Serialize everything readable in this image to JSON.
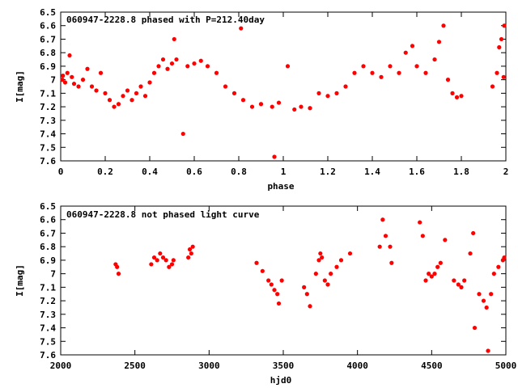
{
  "chart_data": [
    {
      "type": "scatter",
      "title": "060947-2228.8 phased with P=212.40day",
      "xlabel": "phase",
      "ylabel": "I[mag]",
      "xlim": [
        0,
        2
      ],
      "ylim": [
        7.6,
        6.5
      ],
      "y_inverted": true,
      "xticks": [
        "0",
        "0.2",
        "0.4",
        "0.6",
        "0.8",
        "1",
        "1.2",
        "1.4",
        "1.6",
        "1.8",
        "2"
      ],
      "yticks": [
        "6.5",
        "6.6",
        "6.7",
        "6.8",
        "6.9",
        "7",
        "7.1",
        "7.2",
        "7.3",
        "7.4",
        "7.5",
        "7.6"
      ],
      "marker_color": "#ff0000",
      "grid": false,
      "series": [
        {
          "points": [
            [
              0.0,
              7.0
            ],
            [
              0.01,
              6.97
            ],
            [
              0.02,
              7.02
            ],
            [
              0.03,
              6.95
            ],
            [
              0.04,
              6.82
            ],
            [
              0.05,
              6.98
            ],
            [
              0.06,
              7.03
            ],
            [
              0.08,
              7.05
            ],
            [
              0.1,
              7.0
            ],
            [
              0.12,
              6.92
            ],
            [
              0.14,
              7.05
            ],
            [
              0.16,
              7.08
            ],
            [
              0.18,
              6.95
            ],
            [
              0.2,
              7.1
            ],
            [
              0.22,
              7.15
            ],
            [
              0.24,
              7.2
            ],
            [
              0.26,
              7.18
            ],
            [
              0.28,
              7.12
            ],
            [
              0.3,
              7.08
            ],
            [
              0.32,
              7.15
            ],
            [
              0.34,
              7.1
            ],
            [
              0.36,
              7.05
            ],
            [
              0.38,
              7.12
            ],
            [
              0.4,
              7.02
            ],
            [
              0.42,
              6.95
            ],
            [
              0.44,
              6.9
            ],
            [
              0.46,
              6.85
            ],
            [
              0.48,
              6.92
            ],
            [
              0.5,
              6.88
            ],
            [
              0.51,
              6.7
            ],
            [
              0.52,
              6.85
            ],
            [
              0.55,
              7.4
            ],
            [
              0.57,
              6.9
            ],
            [
              0.6,
              6.88
            ],
            [
              0.63,
              6.86
            ],
            [
              0.66,
              6.9
            ],
            [
              0.7,
              6.95
            ],
            [
              0.74,
              7.05
            ],
            [
              0.78,
              7.1
            ],
            [
              0.82,
              7.15
            ],
            [
              0.81,
              6.62
            ],
            [
              0.86,
              7.2
            ],
            [
              0.9,
              7.18
            ],
            [
              0.95,
              7.2
            ],
            [
              0.96,
              7.57
            ],
            [
              0.98,
              7.17
            ],
            [
              1.02,
              6.9
            ],
            [
              1.05,
              7.22
            ],
            [
              1.08,
              7.2
            ],
            [
              1.12,
              7.21
            ],
            [
              1.16,
              7.1
            ],
            [
              1.2,
              7.12
            ],
            [
              1.24,
              7.1
            ],
            [
              1.28,
              7.05
            ],
            [
              1.32,
              6.95
            ],
            [
              1.36,
              6.9
            ],
            [
              1.4,
              6.95
            ],
            [
              1.44,
              6.98
            ],
            [
              1.48,
              6.9
            ],
            [
              1.52,
              6.95
            ],
            [
              1.55,
              6.8
            ],
            [
              1.58,
              6.75
            ],
            [
              1.6,
              6.9
            ],
            [
              1.64,
              6.95
            ],
            [
              1.68,
              6.85
            ],
            [
              1.7,
              6.72
            ],
            [
              1.72,
              6.6
            ],
            [
              1.74,
              7.0
            ],
            [
              1.76,
              7.1
            ],
            [
              1.78,
              7.13
            ],
            [
              1.8,
              7.12
            ],
            [
              1.94,
              7.05
            ],
            [
              1.96,
              6.95
            ],
            [
              1.97,
              6.76
            ],
            [
              1.98,
              6.7
            ],
            [
              1.99,
              6.98
            ],
            [
              2.0,
              6.6
            ]
          ]
        }
      ]
    },
    {
      "type": "scatter",
      "title": "060947-2228.8 not phased light curve",
      "xlabel": "hjd0",
      "ylabel": "I[mag]",
      "xlim": [
        2000,
        5000
      ],
      "ylim": [
        7.6,
        6.5
      ],
      "y_inverted": true,
      "xticks": [
        "2000",
        "2500",
        "3000",
        "3500",
        "4000",
        "4500",
        "5000"
      ],
      "yticks": [
        "6.5",
        "6.6",
        "6.7",
        "6.8",
        "6.9",
        "7",
        "7.1",
        "7.2",
        "7.3",
        "7.4",
        "7.5",
        "7.6"
      ],
      "marker_color": "#ff0000",
      "grid": false,
      "series": [
        {
          "points": [
            [
              2370,
              6.93
            ],
            [
              2380,
              6.95
            ],
            [
              2390,
              7.0
            ],
            [
              2610,
              6.93
            ],
            [
              2630,
              6.88
            ],
            [
              2650,
              6.9
            ],
            [
              2670,
              6.85
            ],
            [
              2690,
              6.88
            ],
            [
              2710,
              6.9
            ],
            [
              2730,
              6.95
            ],
            [
              2750,
              6.93
            ],
            [
              2760,
              6.9
            ],
            [
              2860,
              6.88
            ],
            [
              2870,
              6.82
            ],
            [
              2880,
              6.85
            ],
            [
              2890,
              6.8
            ],
            [
              3320,
              6.92
            ],
            [
              3360,
              6.98
            ],
            [
              3400,
              7.05
            ],
            [
              3420,
              7.08
            ],
            [
              3440,
              7.12
            ],
            [
              3460,
              7.15
            ],
            [
              3470,
              7.22
            ],
            [
              3490,
              7.05
            ],
            [
              3640,
              7.1
            ],
            [
              3660,
              7.15
            ],
            [
              3680,
              7.24
            ],
            [
              3720,
              7.0
            ],
            [
              3740,
              6.9
            ],
            [
              3750,
              6.85
            ],
            [
              3760,
              6.88
            ],
            [
              3780,
              7.05
            ],
            [
              3800,
              7.08
            ],
            [
              3820,
              7.0
            ],
            [
              3860,
              6.95
            ],
            [
              3890,
              6.9
            ],
            [
              3950,
              6.85
            ],
            [
              4150,
              6.8
            ],
            [
              4170,
              6.6
            ],
            [
              4190,
              6.72
            ],
            [
              4220,
              6.8
            ],
            [
              4230,
              6.92
            ],
            [
              4420,
              6.62
            ],
            [
              4440,
              6.72
            ],
            [
              4460,
              7.05
            ],
            [
              4480,
              7.0
            ],
            [
              4500,
              7.02
            ],
            [
              4520,
              7.0
            ],
            [
              4540,
              6.95
            ],
            [
              4560,
              6.92
            ],
            [
              4590,
              6.75
            ],
            [
              4650,
              7.05
            ],
            [
              4680,
              7.08
            ],
            [
              4700,
              7.1
            ],
            [
              4720,
              7.05
            ],
            [
              4760,
              6.85
            ],
            [
              4780,
              6.7
            ],
            [
              4790,
              7.4
            ],
            [
              4820,
              7.15
            ],
            [
              4850,
              7.2
            ],
            [
              4870,
              7.25
            ],
            [
              4880,
              7.57
            ],
            [
              4900,
              7.15
            ],
            [
              4920,
              7.0
            ],
            [
              4950,
              6.95
            ],
            [
              4980,
              6.9
            ],
            [
              5000,
              6.88
            ]
          ]
        }
      ]
    }
  ]
}
